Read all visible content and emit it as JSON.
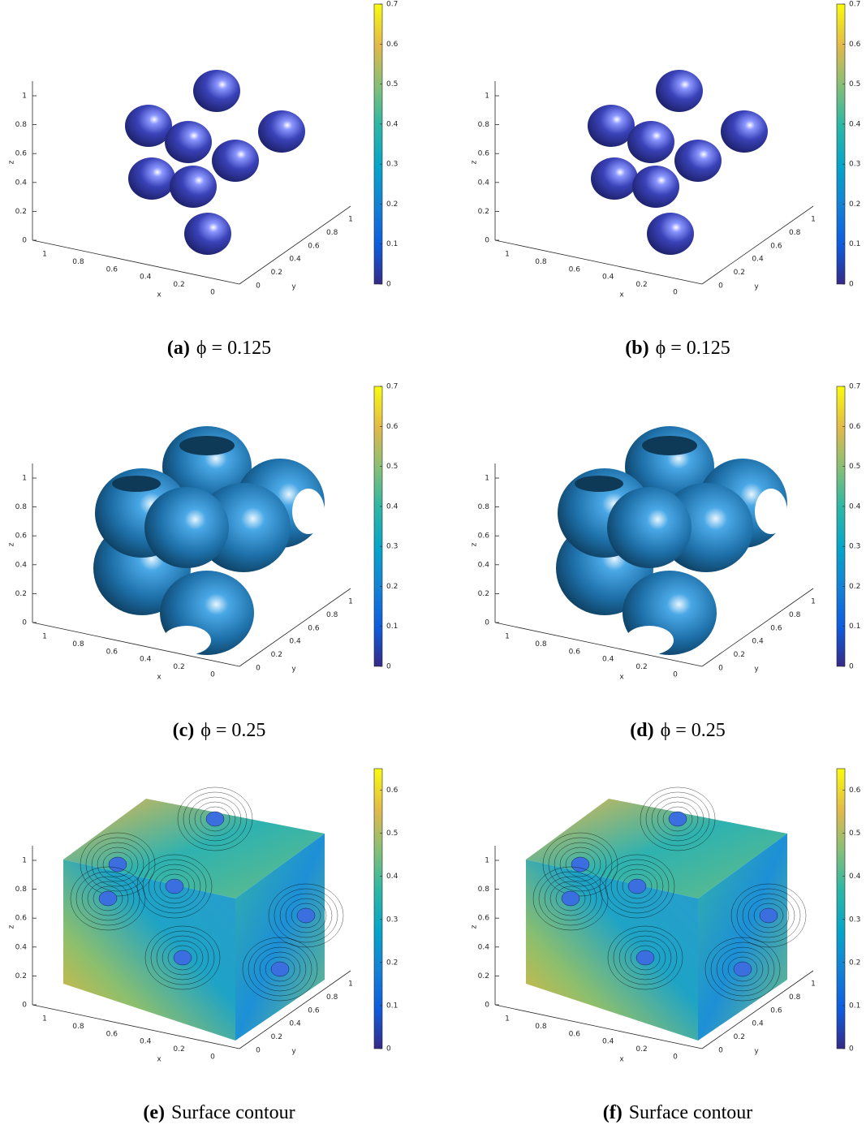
{
  "figure": {
    "panels": [
      {
        "label": "(a)",
        "caption": "ϕ = 0.125",
        "render": "spheres",
        "x_label": "x",
        "y_label": "y",
        "z_label": "z",
        "x_ticks": [
          1,
          0.8,
          0.6,
          0.4,
          0.2,
          0
        ],
        "y_ticks": [
          0,
          0.2,
          0.4,
          0.6,
          0.8,
          1
        ],
        "z_ticks": [
          0,
          0.2,
          0.4,
          0.6,
          0.8,
          1
        ],
        "colorbar_ticks": [
          0,
          0.1,
          0.2,
          0.3,
          0.4,
          0.5,
          0.6,
          0.7
        ],
        "colorbar_range": [
          0,
          0.7
        ]
      },
      {
        "label": "(b)",
        "caption": "ϕ = 0.125",
        "render": "spheres",
        "x_label": "x",
        "y_label": "y",
        "z_label": "z",
        "x_ticks": [
          1,
          0.8,
          0.6,
          0.4,
          0.2,
          0
        ],
        "y_ticks": [
          0,
          0.2,
          0.4,
          0.6,
          0.8,
          1
        ],
        "z_ticks": [
          0,
          0.2,
          0.4,
          0.6,
          0.8,
          1
        ],
        "colorbar_ticks": [
          0,
          0.1,
          0.2,
          0.3,
          0.4,
          0.5,
          0.6,
          0.7
        ],
        "colorbar_range": [
          0,
          0.7
        ]
      },
      {
        "label": "(c)",
        "caption": "ϕ = 0.25",
        "render": "merged",
        "x_label": "x",
        "y_label": "y",
        "z_label": "z",
        "x_ticks": [
          1,
          0.8,
          0.6,
          0.4,
          0.2,
          0
        ],
        "y_ticks": [
          0,
          0.2,
          0.4,
          0.6,
          0.8,
          1
        ],
        "z_ticks": [
          0,
          0.2,
          0.4,
          0.6,
          0.8,
          1
        ],
        "colorbar_ticks": [
          0,
          0.1,
          0.2,
          0.3,
          0.4,
          0.5,
          0.6,
          0.7
        ],
        "colorbar_range": [
          0,
          0.7
        ]
      },
      {
        "label": "(d)",
        "caption": "ϕ = 0.25",
        "render": "merged",
        "x_label": "x",
        "y_label": "y",
        "z_label": "z",
        "x_ticks": [
          1,
          0.8,
          0.6,
          0.4,
          0.2,
          0
        ],
        "y_ticks": [
          0,
          0.2,
          0.4,
          0.6,
          0.8,
          1
        ],
        "z_ticks": [
          0,
          0.2,
          0.4,
          0.6,
          0.8,
          1
        ],
        "colorbar_ticks": [
          0,
          0.1,
          0.2,
          0.3,
          0.4,
          0.5,
          0.6,
          0.7
        ],
        "colorbar_range": [
          0,
          0.7
        ]
      },
      {
        "label": "(e)",
        "caption": "Surface contour",
        "render": "contour",
        "x_label": "x",
        "y_label": "y",
        "z_label": "z",
        "x_ticks": [
          1,
          0.8,
          0.6,
          0.4,
          0.2,
          0
        ],
        "y_ticks": [
          0,
          0.2,
          0.4,
          0.6,
          0.8,
          1
        ],
        "z_ticks": [
          0,
          0.2,
          0.4,
          0.6,
          0.8,
          1
        ],
        "colorbar_ticks": [
          0,
          0.1,
          0.2,
          0.3,
          0.4,
          0.5,
          0.6
        ],
        "colorbar_range": [
          0,
          0.65
        ]
      },
      {
        "label": "(f)",
        "caption": "Surface contour",
        "render": "contour",
        "x_label": "x",
        "y_label": "y",
        "z_label": "z",
        "x_ticks": [
          1,
          0.8,
          0.6,
          0.4,
          0.2,
          0
        ],
        "y_ticks": [
          0,
          0.2,
          0.4,
          0.6,
          0.8,
          1
        ],
        "z_ticks": [
          0,
          0.2,
          0.4,
          0.6,
          0.8,
          1
        ],
        "colorbar_ticks": [
          0,
          0.1,
          0.2,
          0.3,
          0.4,
          0.5,
          0.6
        ],
        "colorbar_range": [
          0,
          0.65
        ]
      }
    ]
  }
}
